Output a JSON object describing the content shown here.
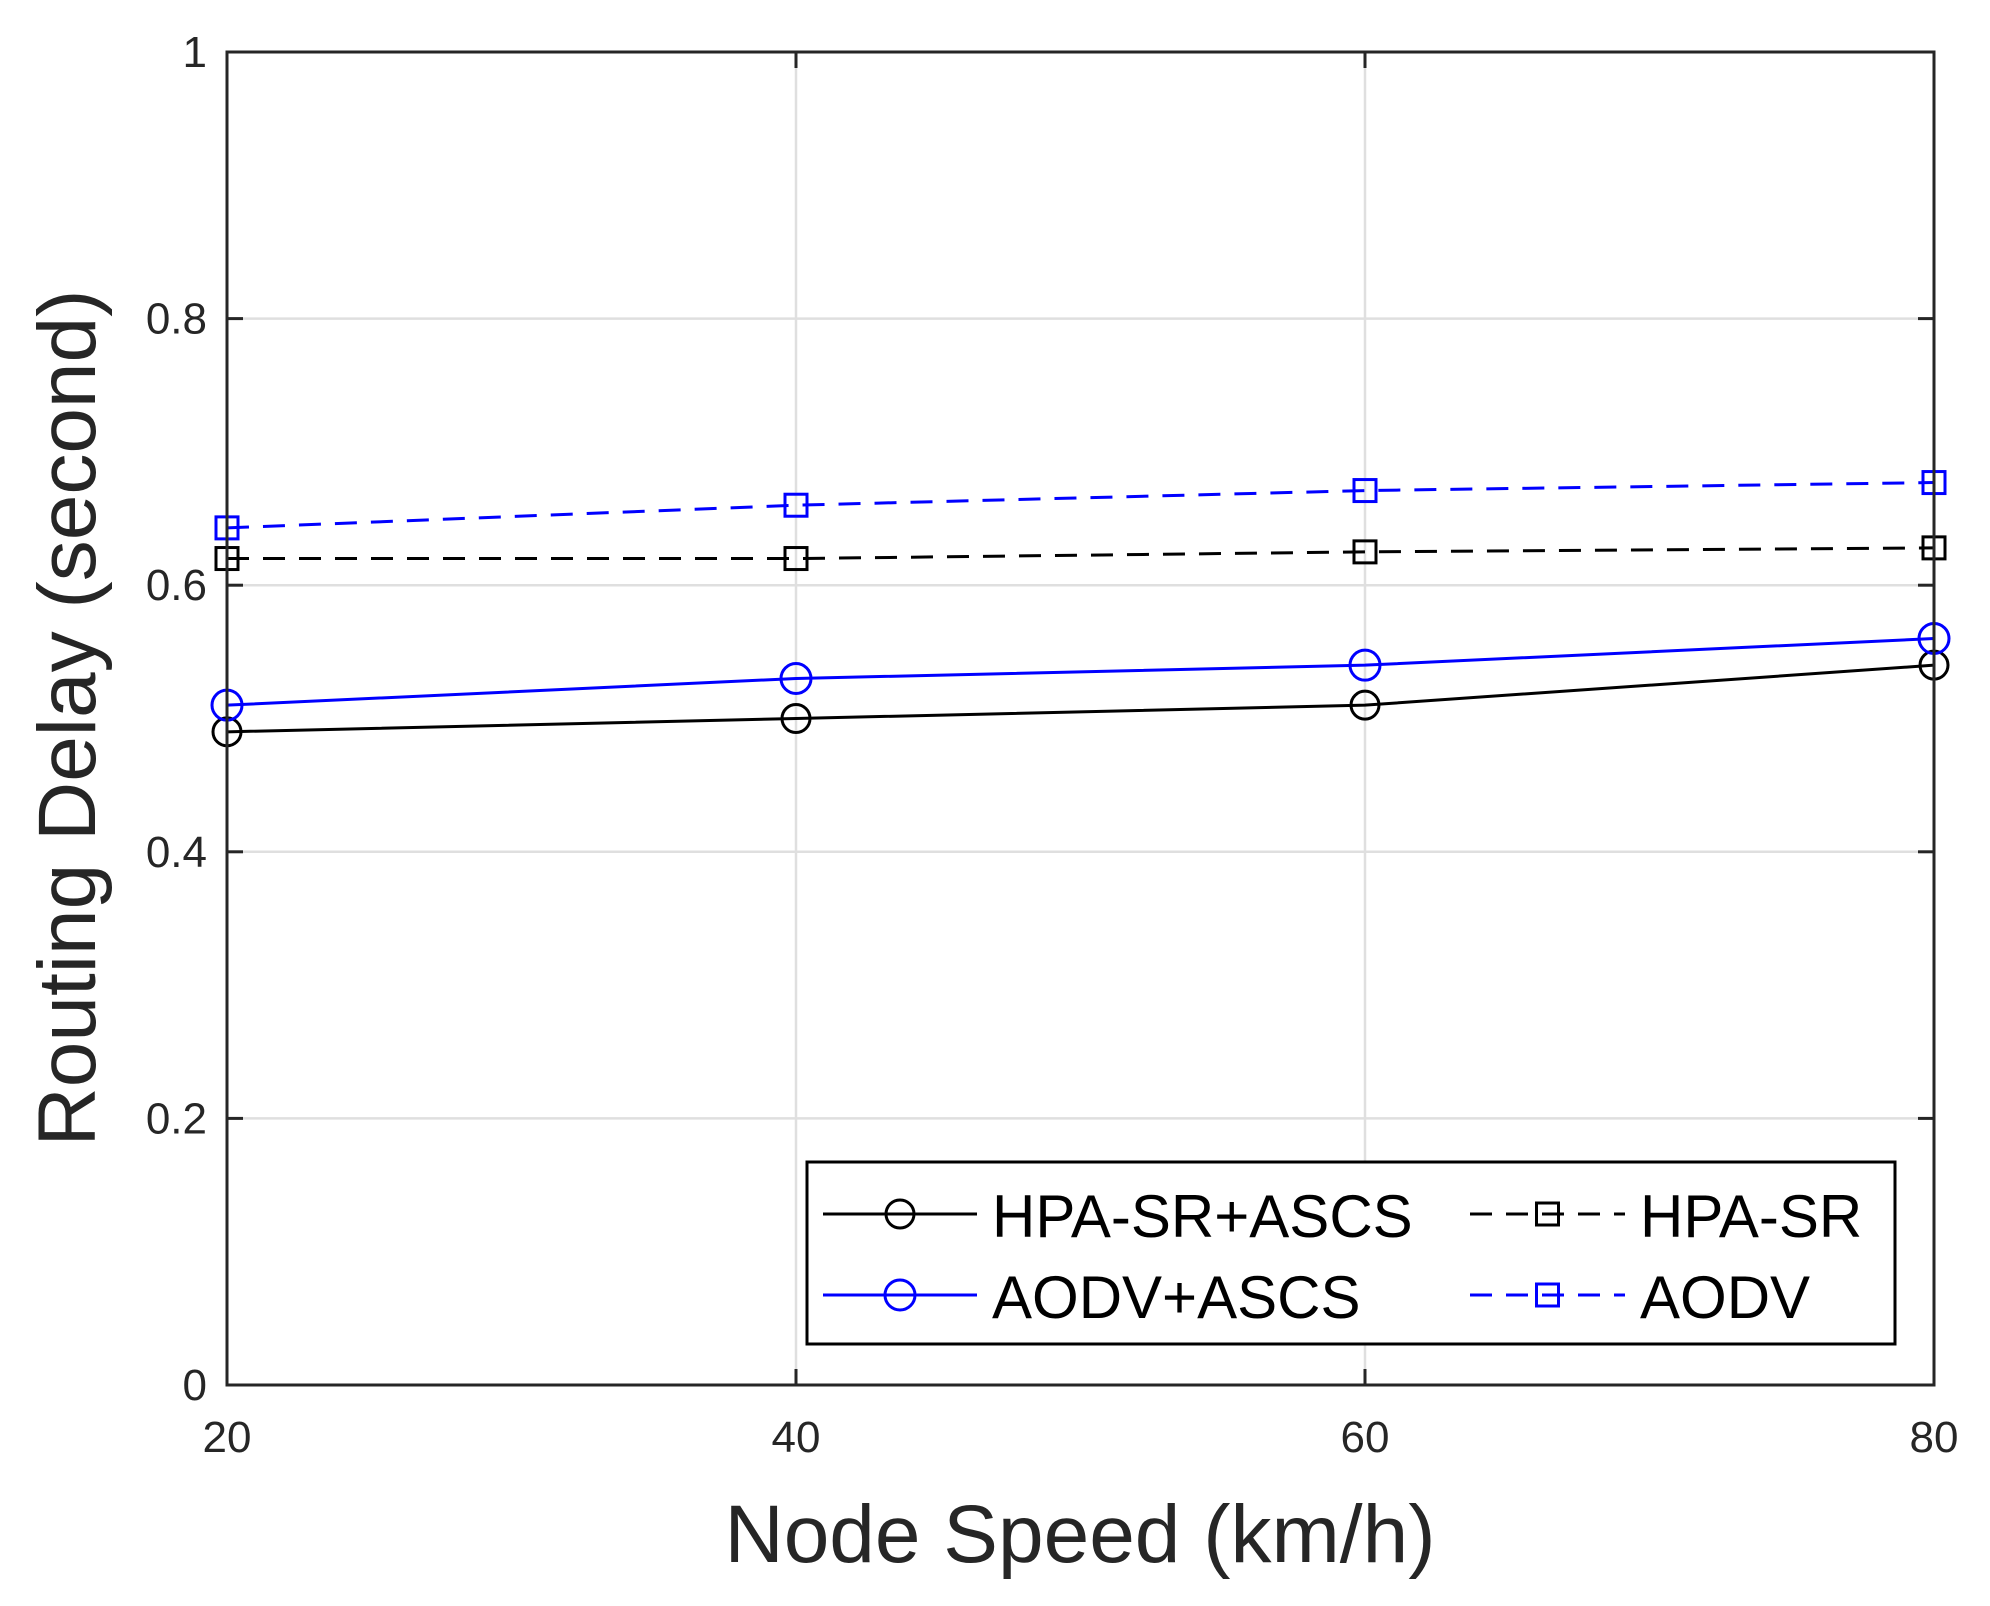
{
  "chart_data": {
    "type": "line",
    "title": "",
    "xlabel": "Node Speed (km/h)",
    "ylabel": "Routing Delay (second)",
    "x": [
      20,
      40,
      60,
      80
    ],
    "xlim": [
      20,
      80
    ],
    "ylim": [
      0,
      1
    ],
    "xticks": [
      20,
      40,
      60,
      80
    ],
    "yticks": [
      0,
      0.2,
      0.4,
      0.6,
      0.8,
      1
    ],
    "xtick_labels": [
      "20",
      "40",
      "60",
      "80"
    ],
    "ytick_labels": [
      "0",
      "0.2",
      "0.4",
      "0.6",
      "0.8",
      "1"
    ],
    "grid": true,
    "legend_position": "bottom-right",
    "series": [
      {
        "name": "HPA-SR+ASCS",
        "values": [
          0.49,
          0.5,
          0.51,
          0.54
        ],
        "color": "#000000",
        "line": "solid",
        "marker": "circle"
      },
      {
        "name": "HPA-SR",
        "values": [
          0.62,
          0.62,
          0.625,
          0.628
        ],
        "color": "#000000",
        "line": "dashed",
        "marker": "square"
      },
      {
        "name": "AODV+ASCS",
        "values": [
          0.51,
          0.53,
          0.54,
          0.56
        ],
        "color": "#0000ff",
        "line": "solid",
        "marker": "circle"
      },
      {
        "name": "AODV",
        "values": [
          0.643,
          0.66,
          0.671,
          0.677
        ],
        "color": "#0000ff",
        "line": "dashed",
        "marker": "square"
      }
    ]
  }
}
